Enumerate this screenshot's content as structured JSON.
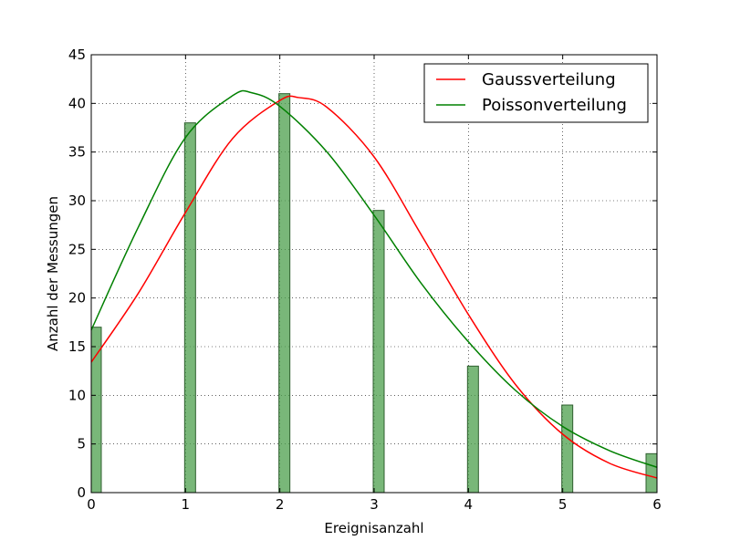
{
  "chart_data": {
    "type": "bar",
    "xlabel": "Ereignisanzahl",
    "ylabel": "Anzahl der Messungen",
    "xlim": [
      0,
      6
    ],
    "ylim": [
      0,
      45
    ],
    "xticks": [
      "0",
      "1",
      "2",
      "3",
      "4",
      "5",
      "6"
    ],
    "yticks": [
      "0",
      "5",
      "10",
      "15",
      "20",
      "25",
      "30",
      "35",
      "40",
      "45"
    ],
    "grid": true,
    "legend_position": "top-right",
    "histogram": {
      "x": [
        0,
        1,
        2,
        3,
        4,
        5,
        6
      ],
      "values": [
        17,
        38,
        41,
        29,
        13,
        9,
        4
      ],
      "color": "#4c9f4c"
    },
    "series": [
      {
        "name": "Gaussverteilung",
        "type": "line",
        "color": "#ff0000",
        "x": [
          0,
          0.5,
          1,
          1.5,
          2,
          2.2,
          2.5,
          3,
          3.5,
          4,
          4.5,
          5,
          5.5,
          6
        ],
        "values": [
          13.4,
          20.5,
          28.8,
          36.4,
          40.3,
          40.6,
          39.6,
          34.5,
          26.5,
          18.3,
          11.1,
          6.0,
          3.0,
          1.5
        ]
      },
      {
        "name": "Poissonverteilung",
        "type": "line",
        "color": "#008000",
        "x": [
          0,
          0.5,
          1,
          1.5,
          1.7,
          2,
          2.5,
          3,
          3.5,
          4,
          4.5,
          5,
          5.5,
          6
        ],
        "values": [
          16.7,
          27.3,
          36.5,
          40.8,
          41.1,
          39.7,
          35.0,
          28.5,
          21.5,
          15.5,
          10.5,
          6.8,
          4.3,
          2.6
        ]
      }
    ]
  }
}
